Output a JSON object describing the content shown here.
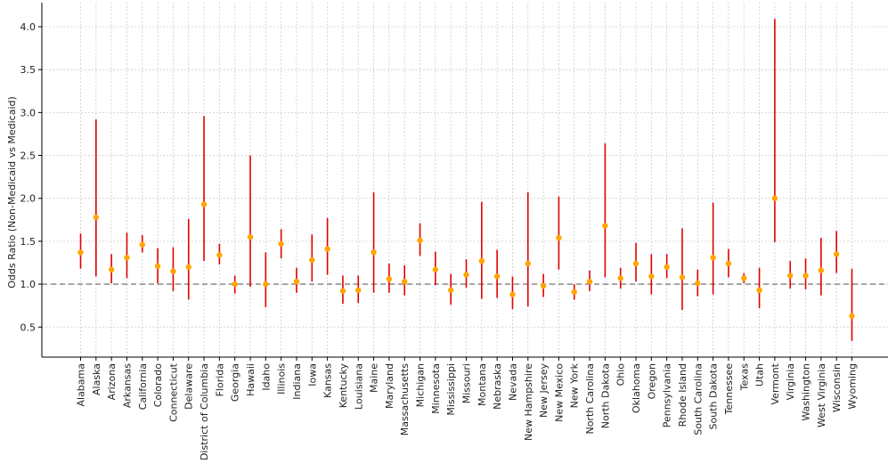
{
  "chart_data": {
    "type": "scatter",
    "subtype": "point-with-error-bars",
    "title": "",
    "xlabel": "",
    "ylabel": "Odds Ratio (Non-Medicaid vs Medicaid)",
    "ylim": [
      0.15,
      4.28
    ],
    "yticks": [
      0.5,
      1.0,
      1.5,
      2.0,
      2.5,
      3.0,
      3.5,
      4.0
    ],
    "ytick_labels": [
      "0.5",
      "1.0",
      "1.5",
      "2.0",
      "2.5",
      "3.0",
      "3.5",
      "4.0"
    ],
    "grid": true,
    "reference_line": {
      "y": 1.0,
      "style": "dashed",
      "color": "#808080"
    },
    "colors": {
      "point": "#ffa500",
      "error_bar": "#e00000",
      "grid": "#cccccc",
      "axis": "#000000"
    },
    "categories": [
      "Alabama",
      "Alaska",
      "Arizona",
      "Arkansas",
      "California",
      "Colorado",
      "Connecticut",
      "Delaware",
      "District of Columbia",
      "Florida",
      "Georgia",
      "Hawaii",
      "Idaho",
      "Illinois",
      "Indiana",
      "Iowa",
      "Kansas",
      "Kentucky",
      "Louisiana",
      "Maine",
      "Maryland",
      "Massachusetts",
      "Michigan",
      "Minnesota",
      "Mississippi",
      "Missouri",
      "Montana",
      "Nebraska",
      "Nevada",
      "New Hampshire",
      "New Jersey",
      "New Mexico",
      "New York",
      "North Carolina",
      "North Dakota",
      "Ohio",
      "Oklahoma",
      "Oregon",
      "Pennsylvania",
      "Rhode Island",
      "South Carolina",
      "South Dakota",
      "Tennessee",
      "Texas",
      "Utah",
      "Vermont",
      "Virginia",
      "Washington",
      "West Virginia",
      "Wisconsin",
      "Wyoming"
    ],
    "odds_ratio": [
      1.37,
      1.78,
      1.17,
      1.31,
      1.46,
      1.21,
      1.15,
      1.2,
      1.93,
      1.34,
      1.0,
      1.55,
      1.0,
      1.47,
      1.03,
      1.28,
      1.41,
      0.92,
      0.93,
      1.37,
      1.06,
      1.03,
      1.51,
      1.17,
      0.93,
      1.11,
      1.27,
      1.09,
      0.88,
      1.24,
      0.98,
      1.54,
      0.91,
      1.03,
      1.68,
      1.07,
      1.24,
      1.09,
      1.2,
      1.08,
      1.01,
      1.31,
      1.24,
      1.07,
      0.93,
      2.0,
      1.1,
      1.1,
      1.16,
      1.35,
      0.63
    ],
    "ci_lower": [
      1.18,
      1.09,
      1.01,
      1.07,
      1.37,
      1.01,
      0.92,
      0.82,
      1.27,
      1.23,
      0.89,
      0.97,
      0.73,
      1.3,
      0.9,
      1.03,
      1.11,
      0.77,
      0.78,
      0.9,
      0.9,
      0.87,
      1.33,
      0.99,
      0.76,
      0.96,
      0.83,
      0.84,
      0.71,
      0.74,
      0.85,
      1.17,
      0.82,
      0.92,
      1.08,
      0.95,
      1.03,
      0.88,
      1.07,
      0.7,
      0.86,
      0.88,
      1.08,
      1.01,
      0.72,
      1.49,
      0.95,
      0.94,
      0.87,
      1.13,
      0.34
    ],
    "ci_upper": [
      1.59,
      2.92,
      1.35,
      1.6,
      1.57,
      1.42,
      1.43,
      1.76,
      2.96,
      1.47,
      1.1,
      2.5,
      1.37,
      1.64,
      1.19,
      1.58,
      1.77,
      1.1,
      1.1,
      2.07,
      1.24,
      1.22,
      1.71,
      1.38,
      1.12,
      1.29,
      1.96,
      1.4,
      1.09,
      2.07,
      1.12,
      2.02,
      1.0,
      1.16,
      2.64,
      1.19,
      1.48,
      1.35,
      1.35,
      1.65,
      1.17,
      1.95,
      1.41,
      1.13,
      1.19,
      4.09,
      1.27,
      1.3,
      1.54,
      1.62,
      1.18
    ]
  }
}
